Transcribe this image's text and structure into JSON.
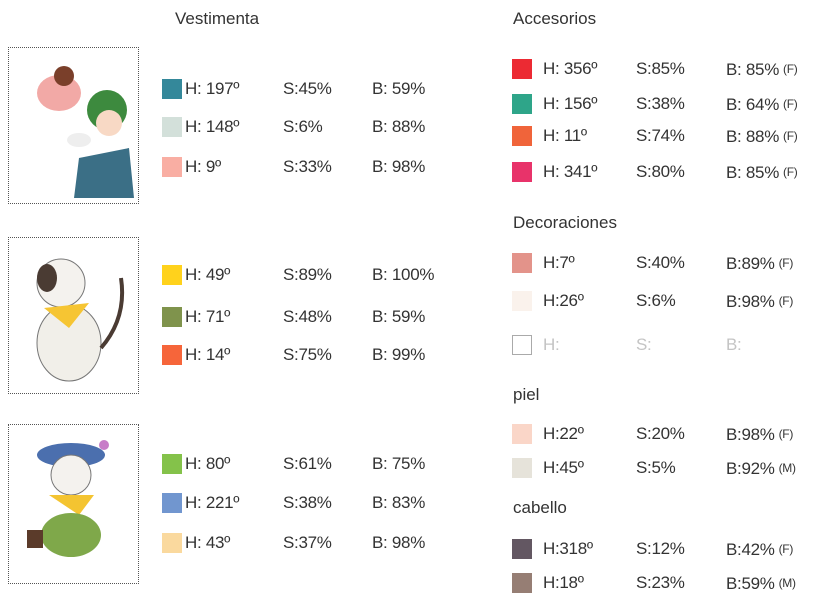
{
  "clothing": {
    "title": "Vestimenta",
    "groups": [
      [
        {
          "color": "#34889a",
          "h": "H: 197º",
          "s": "S:45%",
          "b": "B: 59%"
        },
        {
          "color": "#d3e0da",
          "h": "H: 148º",
          "s": "S:6%",
          "b": "B: 88%"
        },
        {
          "color": "#f9aea3",
          "h": "H: 9º",
          "s": "S:33%",
          "b": "B: 98%"
        }
      ],
      [
        {
          "color": "#ffd21c",
          "h": "H: 49º",
          "s": "S:89%",
          "b": "B: 100%"
        },
        {
          "color": "#7f934c",
          "h": "H: 71º",
          "s": "S:48%",
          "b": "B: 59%"
        },
        {
          "color": "#f6653a",
          "h": "H: 14º",
          "s": "S:75%",
          "b": "B: 99%"
        }
      ],
      [
        {
          "color": "#84c24a",
          "h": "H: 80º",
          "s": "S:61%",
          "b": "B: 75%"
        },
        {
          "color": "#7196cf",
          "h": "H: 221º",
          "s": "S:38%",
          "b": "B: 83%"
        },
        {
          "color": "#fad99e",
          "h": "H: 43º",
          "s": "S:37%",
          "b": "B: 98%"
        }
      ]
    ]
  },
  "sections": [
    {
      "title": "Accesorios",
      "rows": [
        {
          "color": "#ec2a33",
          "h": "H: 356º",
          "s": "S:85%",
          "b": "B: 85%",
          "note": "(F)"
        },
        {
          "color": "#2ea589",
          "h": "H: 156º",
          "s": "S:38%",
          "b": "B: 64%",
          "note": "(F)"
        },
        {
          "color": "#f0643a",
          "h": "H: 11º",
          "s": "S:74%",
          "b": "B: 88%",
          "note": "(F)"
        },
        {
          "color": "#e8336a",
          "h": "H: 341º",
          "s": "S:80%",
          "b": "B: 85%",
          "note": "(F)"
        }
      ]
    },
    {
      "title": "Decoraciones",
      "rows": [
        {
          "color": "#e3938a",
          "h": "H:7º",
          "s": "S:40%",
          "b": "B:89%",
          "note": "(F)"
        },
        {
          "color": "#faf2ec",
          "h": "H:26º",
          "s": "S:6%",
          "b": "B:98%",
          "note": "(F)"
        },
        {
          "color": "#ffffff",
          "h": "H:",
          "s": "S:",
          "b": "B:",
          "text_color": "#c4c4c4"
        }
      ]
    },
    {
      "title": "piel",
      "rows": [
        {
          "color": "#fad6c8",
          "h": "H:22º",
          "s": "S:20%",
          "b": "B:98%",
          "note": "(F)"
        },
        {
          "color": "#e6e3da",
          "h": "H:45º",
          "s": "S:5%",
          "b": "B:92%",
          "note": "(M)"
        }
      ]
    },
    {
      "title": "cabello",
      "rows": [
        {
          "color": "#635762",
          "h": "H:318º",
          "s": "S:12%",
          "b": "B:42%",
          "note": "(F)"
        },
        {
          "color": "#967e74",
          "h": "H:18º",
          "s": "S:23%",
          "b": "B:59%",
          "note": "(M)"
        }
      ]
    }
  ]
}
